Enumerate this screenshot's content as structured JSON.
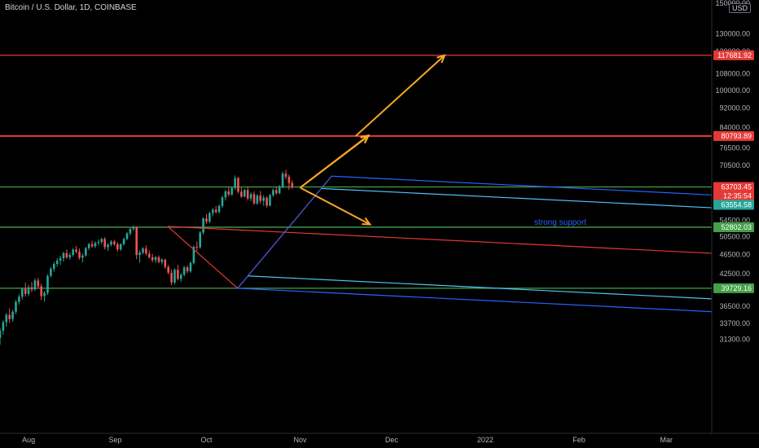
{
  "header": {
    "title": "Bitcoin / U.S. Dollar, 1D, COINBASE",
    "currency": "USD"
  },
  "annotation": "strong support",
  "chart_data": {
    "type": "candlestick",
    "scale": "log",
    "ylim": [
      29500,
      150000
    ],
    "x_ticks": [
      "Aug",
      "Sep",
      "Oct",
      "Nov",
      "Dec",
      "2022",
      "Feb",
      "Mar"
    ],
    "y_ticks": [
      150000,
      130000,
      120000,
      108000,
      100000,
      92000,
      84000,
      76500,
      70500,
      63500,
      54500,
      50500,
      46500,
      42500,
      39500,
      36500,
      33700,
      31300
    ],
    "horizontal_levels": [
      {
        "value": 117681.92,
        "label": "117681.92",
        "color": "#e53935"
      },
      {
        "value": 80793.89,
        "label": "80793.89",
        "color": "#e53935"
      },
      {
        "value": 63703.45,
        "label": "63703.45",
        "color": "#43a047"
      },
      {
        "value": 52802.03,
        "label": "52802.03",
        "color": "#43a047"
      },
      {
        "value": 39729.16,
        "label": "39729.16",
        "color": "#43a047"
      }
    ],
    "price_badges": [
      {
        "label": "63703.45",
        "color": "#e53935"
      },
      {
        "label": "12:35:54",
        "color": "#e53935"
      },
      {
        "label": "63554.58",
        "color": "#26a69a"
      }
    ],
    "candles": [
      [
        31500,
        33000,
        30500,
        32600
      ],
      [
        32600,
        34200,
        32000,
        33900
      ],
      [
        33900,
        35400,
        33200,
        35100
      ],
      [
        35100,
        36200,
        33800,
        34400
      ],
      [
        34400,
        35900,
        34000,
        35600
      ],
      [
        35600,
        37600,
        35200,
        37300
      ],
      [
        37300,
        38600,
        36800,
        38200
      ],
      [
        38200,
        39900,
        37700,
        39600
      ],
      [
        39600,
        40800,
        38200,
        38700
      ],
      [
        38700,
        40400,
        38300,
        39900
      ],
      [
        39900,
        40900,
        39000,
        39500
      ],
      [
        39500,
        41600,
        39200,
        41200
      ],
      [
        41200,
        41700,
        39700,
        40100
      ],
      [
        40100,
        40600,
        37600,
        38300
      ],
      [
        38300,
        39200,
        37300,
        38900
      ],
      [
        38900,
        42400,
        38500,
        42100
      ],
      [
        42100,
        43900,
        41800,
        43500
      ],
      [
        43500,
        44900,
        42900,
        44500
      ],
      [
        44500,
        45700,
        43900,
        45200
      ],
      [
        45200,
        46200,
        44300,
        45700
      ],
      [
        45700,
        47100,
        45000,
        46800
      ],
      [
        46800,
        47600,
        45500,
        45900
      ],
      [
        45900,
        46900,
        45400,
        46400
      ],
      [
        46400,
        47900,
        46000,
        47600
      ],
      [
        47600,
        48400,
        46700,
        47100
      ],
      [
        47100,
        47800,
        45400,
        45800
      ],
      [
        45800,
        46700,
        44800,
        46300
      ],
      [
        46300,
        48200,
        46000,
        47900
      ],
      [
        47900,
        49100,
        47400,
        48800
      ],
      [
        48800,
        49600,
        48000,
        48300
      ],
      [
        48300,
        49400,
        47900,
        49100
      ],
      [
        49100,
        49900,
        48500,
        49300
      ],
      [
        49300,
        50300,
        48800,
        50000
      ],
      [
        50000,
        50400,
        47600,
        48100
      ],
      [
        48100,
        49000,
        47300,
        48700
      ],
      [
        48700,
        49700,
        48300,
        49400
      ],
      [
        49400,
        49800,
        48400,
        48800
      ],
      [
        48800,
        49200,
        47100,
        47600
      ],
      [
        47600,
        49000,
        47300,
        48800
      ],
      [
        48800,
        50300,
        48500,
        50000
      ],
      [
        50000,
        51600,
        49700,
        51300
      ],
      [
        51300,
        52700,
        50800,
        52400
      ],
      [
        52400,
        53200,
        51900,
        52800
      ],
      [
        52800,
        53000,
        45500,
        46400
      ],
      [
        46400,
        47400,
        44800,
        46900
      ],
      [
        46900,
        48100,
        46500,
        47800
      ],
      [
        47800,
        48500,
        46300,
        46700
      ],
      [
        46700,
        47400,
        45600,
        45900
      ],
      [
        45900,
        46600,
        44800,
        45300
      ],
      [
        45300,
        46200,
        44700,
        45900
      ],
      [
        45900,
        46300,
        44600,
        44900
      ],
      [
        44900,
        45700,
        44400,
        45400
      ],
      [
        45400,
        45600,
        43500,
        43900
      ],
      [
        43900,
        44300,
        42400,
        42700
      ],
      [
        42700,
        43400,
        40300,
        40800
      ],
      [
        40800,
        43600,
        40500,
        43300
      ],
      [
        43300,
        44300,
        41200,
        41500
      ],
      [
        41500,
        42700,
        40900,
        42300
      ],
      [
        42300,
        44100,
        42000,
        43800
      ],
      [
        43800,
        44200,
        42600,
        43000
      ],
      [
        43000,
        45000,
        42700,
        44700
      ],
      [
        44700,
        48500,
        44400,
        48200
      ],
      [
        48200,
        49400,
        47300,
        48100
      ],
      [
        48100,
        51900,
        47800,
        51500
      ],
      [
        51500,
        55300,
        51000,
        55000
      ],
      [
        55000,
        56100,
        53700,
        54200
      ],
      [
        54200,
        56800,
        53800,
        56400
      ],
      [
        56400,
        57800,
        55600,
        57300
      ],
      [
        57300,
        58300,
        56200,
        56700
      ],
      [
        56700,
        58700,
        56300,
        58300
      ],
      [
        58300,
        61100,
        57800,
        60700
      ],
      [
        60700,
        62900,
        59800,
        62400
      ],
      [
        62400,
        63600,
        60900,
        61500
      ],
      [
        61500,
        63800,
        61100,
        63400
      ],
      [
        63400,
        67200,
        62800,
        66400
      ],
      [
        66400,
        66800,
        61800,
        62300
      ],
      [
        62300,
        63500,
        60500,
        60900
      ],
      [
        60900,
        63200,
        60700,
        62800
      ],
      [
        62800,
        63600,
        59800,
        60400
      ],
      [
        60400,
        62100,
        59600,
        61600
      ],
      [
        61600,
        62400,
        58600,
        59000
      ],
      [
        59000,
        61600,
        58600,
        61200
      ],
      [
        61200,
        62500,
        58900,
        59700
      ],
      [
        59700,
        61300,
        58400,
        60600
      ],
      [
        60600,
        61000,
        57900,
        58400
      ],
      [
        58400,
        61700,
        58200,
        61300
      ],
      [
        61300,
        63300,
        60800,
        62800
      ],
      [
        62800,
        63900,
        61400,
        61900
      ],
      [
        61900,
        64300,
        61500,
        63800
      ],
      [
        63800,
        68500,
        63300,
        67800
      ],
      [
        67800,
        69000,
        66000,
        66800
      ],
      [
        66800,
        67500,
        62800,
        64900
      ],
      [
        64900,
        65700,
        63100,
        63700
      ]
    ],
    "pitchfork": {
      "pivots": [
        {
          "t": 52.8,
          "price": 53000
        },
        {
          "t": 74.8,
          "price": 39729
        },
        {
          "t": 104.4,
          "price": 67000
        }
      ],
      "colors": {
        "median": "#e53935",
        "inner": "#4fc3f7",
        "outer": "#2962ff",
        "pivot_lines": "#e53935"
      }
    },
    "projection_arrows": [
      {
        "from": [
          94.5,
          63500
        ],
        "to": [
          116.0,
          81000
        ],
        "color": "#f9a825"
      },
      {
        "from": [
          94.5,
          63500
        ],
        "to": [
          116.0,
          80793
        ],
        "color": "#f9a825"
      },
      {
        "from": [
          112.0,
          80793
        ],
        "to": [
          140.0,
          117681
        ],
        "color": "#f9a825"
      },
      {
        "from": [
          94.5,
          63500
        ],
        "to": [
          116.5,
          53500
        ],
        "color": "#f9a825"
      }
    ]
  }
}
